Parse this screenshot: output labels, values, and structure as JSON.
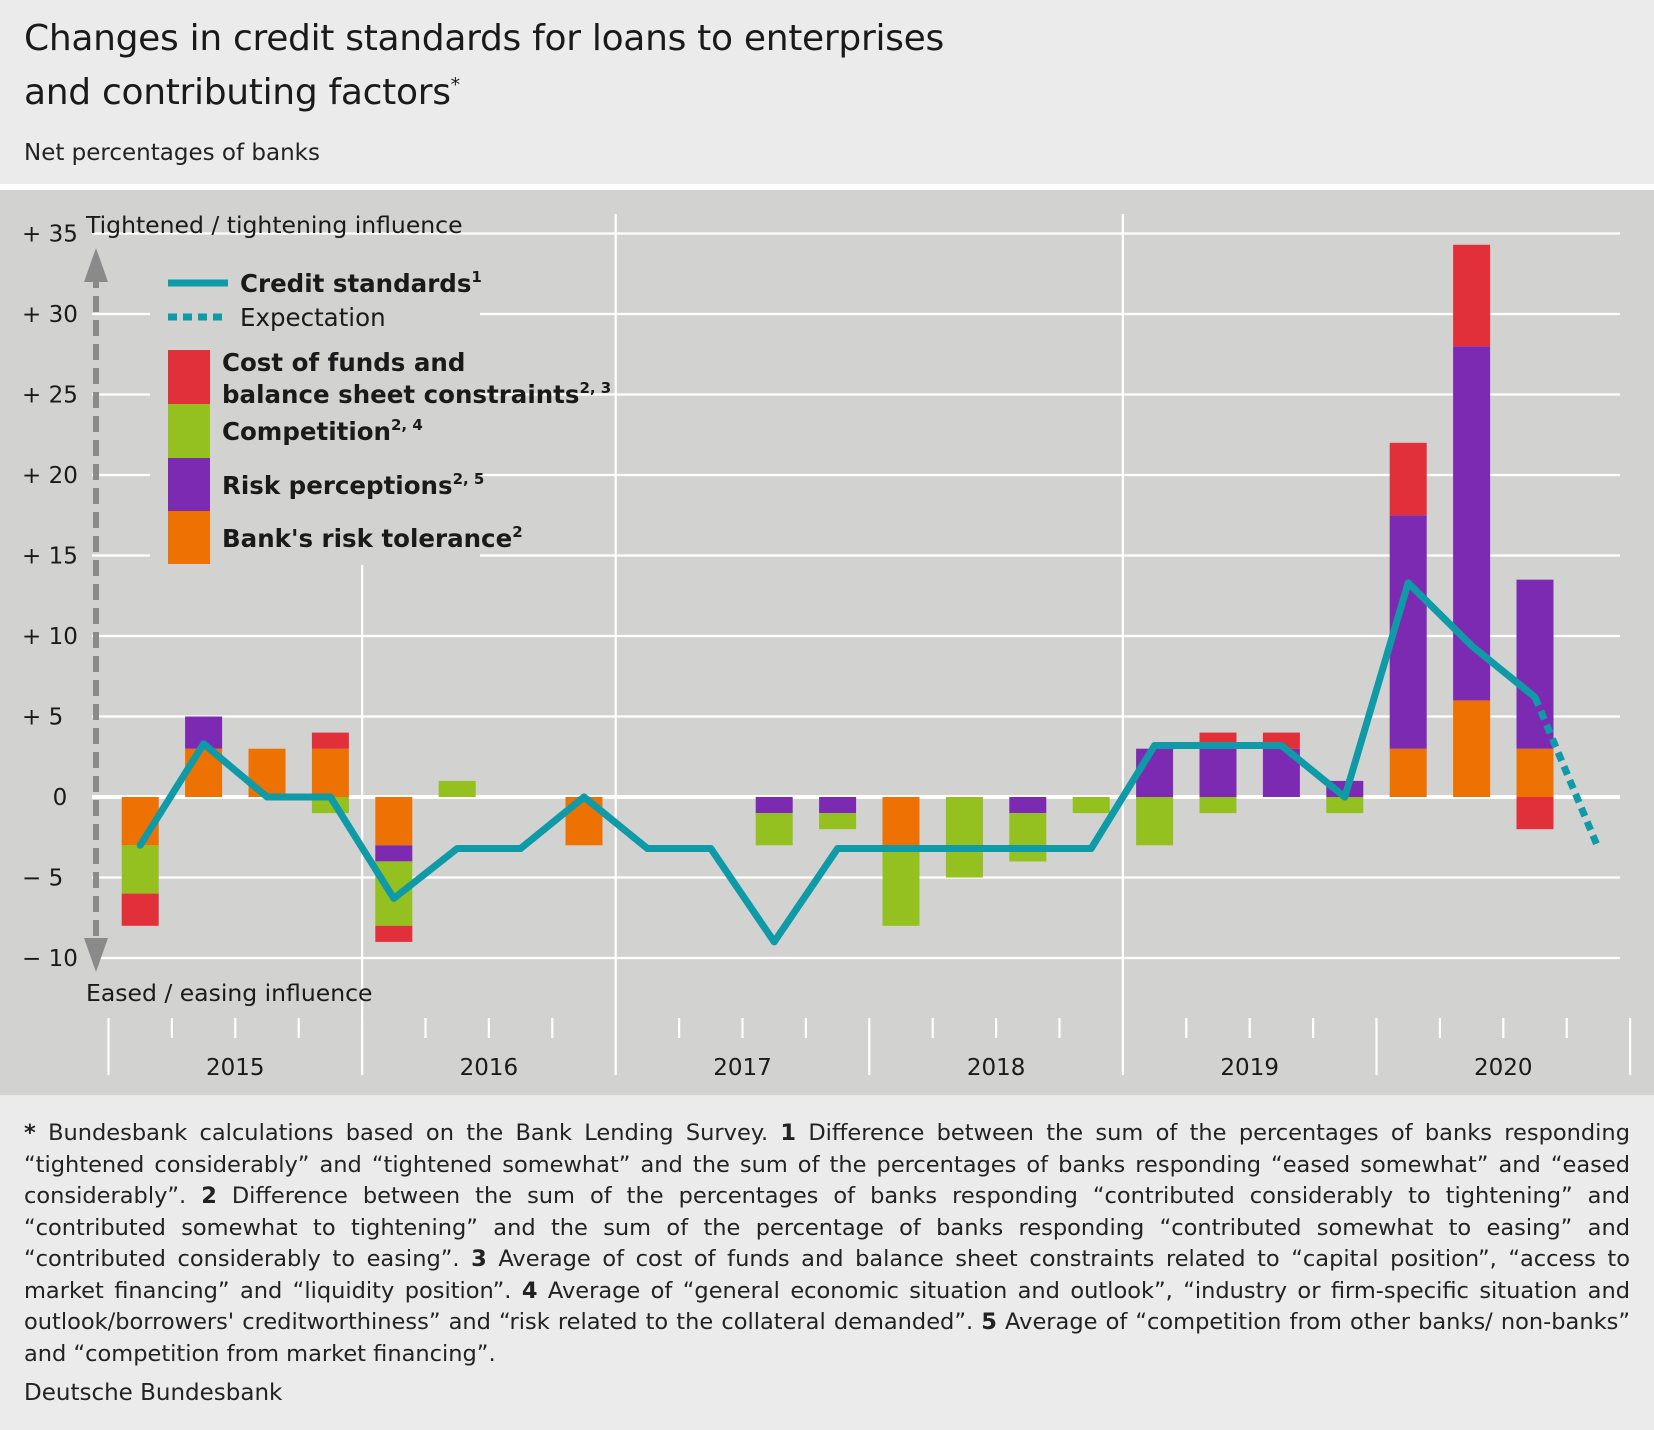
{
  "title_line1": "Changes in credit standards for loans to enterprises",
  "title_line2": "and contributing factors",
  "title_mark": "*",
  "subtitle": "Net percentages of banks",
  "source": "Deutsche Bundesbank",
  "footnote_html": "<b>*</b> Bundesbank calculations based on the Bank Lending Survey. <b>1</b> Difference between the sum of the percentages of banks responding “tightened considerably” and “tightened somewhat” and the sum of the percentages of banks responding “eased somewhat” and “eased considerably”. <b>2</b> Difference between the sum of the percentages of banks responding “contributed considerably to tightening” and “contributed somewhat to tightening” and the sum of the percentage of banks responding “contributed somewhat to easing” and “contributed considerably to easing”. <b>3</b> Average of cost of funds and balance sheet constraints related to “capital position”, “access to market financing” and “liquidity position”. <b>4</b> Average of “general economic situation and outlook”, “industry or firm-specific situation and outlook/borrowers' creditworthiness” and “risk related to the collateral demanded”. <b>5</b> Average of “competition from other banks/ non-banks” and “competition from market financing”.",
  "chart_data": {
    "type": "bar",
    "stacked": true,
    "top_annotation": "Tightened / tightening influence",
    "bottom_annotation": "Eased / easing influence",
    "ylim": [
      -10,
      35
    ],
    "yticks": [
      {
        "v": 35,
        "label": "+ 35"
      },
      {
        "v": 30,
        "label": "+ 30"
      },
      {
        "v": 25,
        "label": "+ 25"
      },
      {
        "v": 20,
        "label": "+ 20"
      },
      {
        "v": 15,
        "label": "+ 15"
      },
      {
        "v": 10,
        "label": "+ 10"
      },
      {
        "v": 5,
        "label": "+  5"
      },
      {
        "v": 0,
        "label": "0"
      },
      {
        "v": -5,
        "label": "−  5"
      },
      {
        "v": -10,
        "label": "− 10"
      }
    ],
    "years": [
      "2015",
      "2016",
      "2017",
      "2018",
      "2019",
      "2020"
    ],
    "quarters": [
      "2015Q1",
      "2015Q2",
      "2015Q3",
      "2015Q4",
      "2016Q1",
      "2016Q2",
      "2016Q3",
      "2016Q4",
      "2017Q1",
      "2017Q2",
      "2017Q3",
      "2017Q4",
      "2018Q1",
      "2018Q2",
      "2018Q3",
      "2018Q4",
      "2019Q1",
      "2019Q2",
      "2019Q3",
      "2019Q4",
      "2020Q1",
      "2020Q2",
      "2020Q3",
      "2020Q4"
    ],
    "legend": {
      "credit": "Credit standards",
      "credit_mark": "1",
      "expectation": "Expectation",
      "cost_line1": "Cost of funds and",
      "cost_line2": "balance sheet constraints",
      "cost_mark": "2, 3",
      "competition": "Competition",
      "competition_mark": "2, 4",
      "risk": "Risk perceptions",
      "risk_mark": "2, 5",
      "tolerance": "Bank's risk tolerance",
      "tolerance_mark": "2"
    },
    "colors": {
      "cost": "#e1303a",
      "competition": "#94c11f",
      "risk": "#7d2ab3",
      "tolerance": "#ee7203",
      "line": "#0e9aa7",
      "grid": "#ffffff",
      "arrow": "#8a8a8a"
    },
    "bars": [
      {
        "q": 0,
        "tolerance": -3,
        "risk": 0,
        "competition": -3,
        "cost": -2
      },
      {
        "q": 1,
        "tolerance": 3,
        "risk": 2,
        "competition": 0,
        "cost": 0
      },
      {
        "q": 2,
        "tolerance": 3,
        "risk": 0,
        "competition": 0,
        "cost": 0
      },
      {
        "q": 3,
        "tolerance": 3,
        "risk": 0,
        "competition": -1,
        "cost": 1
      },
      {
        "q": 4,
        "tolerance": -3,
        "risk": -1,
        "competition": -4,
        "cost": -1
      },
      {
        "q": 5,
        "tolerance": 0,
        "risk": 0,
        "competition": 1,
        "cost": 0
      },
      {
        "q": 7,
        "tolerance": -3,
        "risk": 0,
        "competition": 0,
        "cost": 0
      },
      {
        "q": 10,
        "tolerance": 0,
        "risk": -1,
        "competition": -2,
        "cost": 0
      },
      {
        "q": 11,
        "tolerance": 0,
        "risk": -1,
        "competition": -1,
        "cost": 0
      },
      {
        "q": 12,
        "tolerance": -3,
        "risk": 0,
        "competition": -5,
        "cost": 0
      },
      {
        "q": 13,
        "tolerance": 0,
        "risk": 0,
        "competition": -5,
        "cost": 0
      },
      {
        "q": 14,
        "tolerance": 0,
        "risk": -1,
        "competition": -3,
        "cost": 0
      },
      {
        "q": 15,
        "tolerance": 0,
        "risk": 0,
        "competition": -1,
        "cost": 0
      },
      {
        "q": 16,
        "tolerance": 0,
        "risk": 3,
        "competition": -3,
        "cost": 0
      },
      {
        "q": 17,
        "tolerance": 0,
        "risk": 3,
        "competition": -1,
        "cost": 1
      },
      {
        "q": 18,
        "tolerance": 0,
        "risk": 3,
        "competition": 0,
        "cost": 1
      },
      {
        "q": 19,
        "tolerance": 0,
        "risk": 1,
        "competition": -1,
        "cost": 0
      },
      {
        "q": 20,
        "tolerance": 3,
        "risk": 14.5,
        "competition": 0,
        "cost": 4.5
      },
      {
        "q": 21,
        "tolerance": 6,
        "risk": 22,
        "competition": 0,
        "cost": 6.3
      },
      {
        "q": 22,
        "tolerance": 3,
        "risk": 10.5,
        "competition": 0,
        "cost": -2
      }
    ],
    "credit_standards": [
      -3,
      3.3,
      0,
      0,
      -6.3,
      -3.2,
      -3.2,
      0,
      -3.2,
      -3.2,
      -9,
      -3.2,
      -3.2,
      -3.2,
      -3.2,
      -3.2,
      3.2,
      3.2,
      3.2,
      0,
      13.3,
      9.4,
      6.2
    ],
    "expectation": [
      6.2,
      -3.2
    ]
  }
}
